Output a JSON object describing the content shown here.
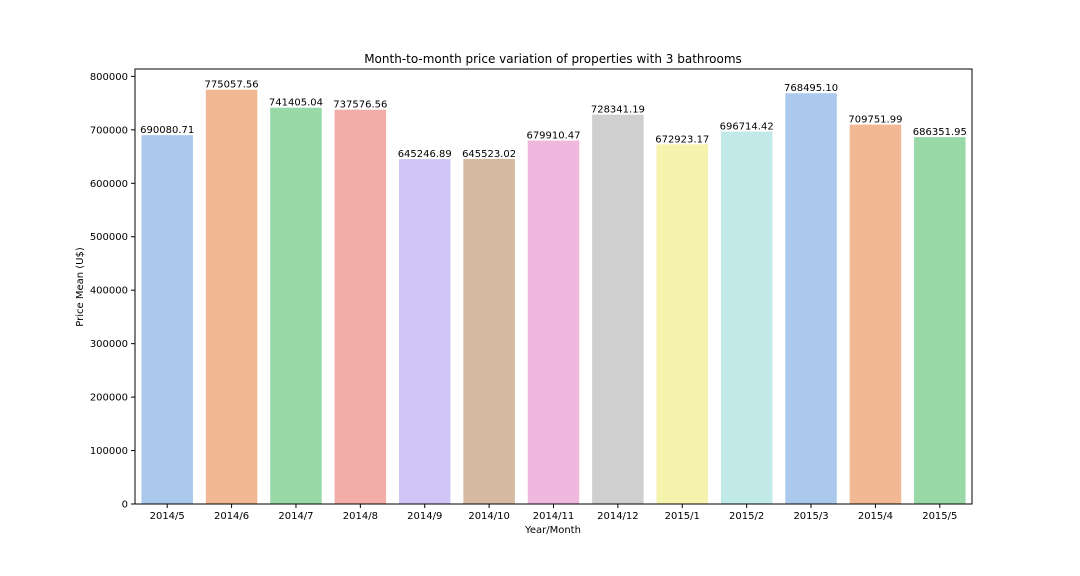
{
  "chart_data": {
    "type": "bar",
    "title": "Month-to-month price variation of properties with 3 bathrooms",
    "xlabel": "Year/Month",
    "ylabel": "Price Mean (U$)",
    "categories": [
      "2014/5",
      "2014/6",
      "2014/7",
      "2014/8",
      "2014/9",
      "2014/10",
      "2014/11",
      "2014/12",
      "2015/1",
      "2015/2",
      "2015/3",
      "2015/4",
      "2015/5"
    ],
    "values": [
      690080.71,
      775057.56,
      741405.04,
      737576.56,
      645246.89,
      645523.02,
      679910.47,
      728341.19,
      672923.17,
      696714.42,
      768495.1,
      709751.99,
      686351.95
    ],
    "data_labels": [
      "690080.71",
      "775057.56",
      "741405.04",
      "737576.56",
      "645246.89",
      "645523.02",
      "679910.47",
      "728341.19",
      "672923.17",
      "696714.42",
      "768495.10",
      "709751.99",
      "686351.95"
    ],
    "yticks": [
      0,
      100000,
      200000,
      300000,
      400000,
      500000,
      600000,
      700000,
      800000
    ],
    "ylim": [
      0,
      813810
    ],
    "grid": false,
    "colors": [
      "#abc9ed",
      "#f1b893",
      "#98d9a7",
      "#f2ada9",
      "#d1c5f6",
      "#d6bba2",
      "#f1b8df",
      "#cfcfcf",
      "#f5f3ad",
      "#c1e9e7",
      "#abc9ed",
      "#f1b893",
      "#98d9a7"
    ]
  }
}
